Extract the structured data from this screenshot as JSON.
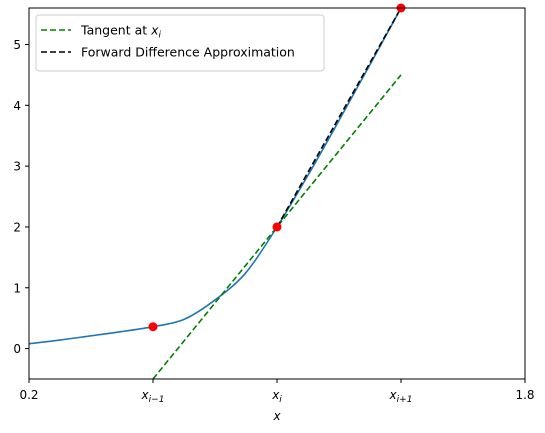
{
  "chart_data": {
    "type": "line",
    "title": "",
    "xlabel": "x",
    "ylabel": "",
    "xlim": [
      0.2,
      1.8
    ],
    "ylim": [
      -0.5,
      5.6
    ],
    "grid": false,
    "legend_position": "top-left",
    "x_ticks": [
      {
        "value": 0.2,
        "label": "0.2",
        "math": false
      },
      {
        "value": 0.6,
        "label": "x_{i-1}",
        "math": true,
        "base": "x",
        "sub": "i−1"
      },
      {
        "value": 1.0,
        "label": "x_i",
        "math": true,
        "base": "x",
        "sub": "i"
      },
      {
        "value": 1.4,
        "label": "x_{i+1}",
        "math": true,
        "base": "x",
        "sub": "i+1"
      },
      {
        "value": 1.8,
        "label": "1.8",
        "math": false
      }
    ],
    "y_ticks": [
      0,
      1,
      2,
      3,
      4,
      5
    ],
    "series": [
      {
        "style": "solid",
        "color": "#1f77b4",
        "in_legend": false,
        "x": [
          0.2,
          0.3,
          0.4,
          0.5,
          0.6,
          0.7,
          0.8,
          0.9,
          1.0,
          1.1,
          1.2,
          1.3,
          1.4
        ],
        "y": [
          0.08,
          0.14,
          0.21,
          0.28,
          0.36,
          0.48,
          0.8,
          1.25,
          2.0,
          2.85,
          3.75,
          4.67,
          5.6
        ]
      },
      {
        "name": "Tangent at x_i",
        "label_text": "Tangent at ",
        "label_math_base": "x",
        "label_math_sub": "i",
        "style": "dashed",
        "color": "#008000",
        "in_legend": true,
        "x": [
          0.6,
          1.4
        ],
        "y": [
          -0.5,
          4.5
        ]
      },
      {
        "name": "Forward Difference Approximation",
        "label_text": "Forward Difference Approximation",
        "style": "dashed",
        "color": "#000000",
        "in_legend": true,
        "x": [
          1.0,
          1.4
        ],
        "y": [
          2.0,
          5.6
        ]
      }
    ],
    "points": {
      "color": "#ff0000",
      "x": [
        0.6,
        1.0,
        1.4
      ],
      "y": [
        0.36,
        2.0,
        5.6
      ]
    }
  }
}
